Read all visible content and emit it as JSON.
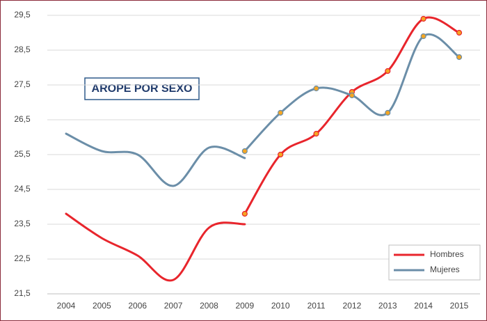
{
  "chart_data": {
    "type": "line",
    "title": "AROPE POR SEXO",
    "categories": [
      "2004",
      "2005",
      "2006",
      "2007",
      "2008",
      "2009",
      "2010",
      "2011",
      "2012",
      "2013",
      "2014",
      "2015"
    ],
    "series": [
      {
        "name": "Hombres",
        "color": "#e8252c",
        "marker_color": "#f5a623",
        "pieces": [
          {
            "markers": false,
            "values": [
              23.8,
              23.1,
              22.6,
              21.9,
              23.4,
              23.5,
              null,
              null,
              null,
              null,
              null,
              null
            ]
          },
          {
            "markers": true,
            "values": [
              null,
              null,
              null,
              null,
              null,
              23.8,
              25.5,
              26.1,
              27.3,
              27.9,
              29.4,
              29.0
            ]
          }
        ]
      },
      {
        "name": "Mujeres",
        "color": "#6b8ea8",
        "marker_color": "#f5a623",
        "pieces": [
          {
            "markers": false,
            "values": [
              26.1,
              25.6,
              25.5,
              24.6,
              25.7,
              25.4,
              null,
              null,
              null,
              null,
              null,
              null
            ]
          },
          {
            "markers": true,
            "values": [
              null,
              null,
              null,
              null,
              null,
              25.6,
              26.7,
              27.4,
              27.2,
              26.7,
              28.9,
              28.3
            ]
          }
        ]
      }
    ],
    "ylim": [
      21.5,
      29.5
    ],
    "yticks": [
      {
        "value": 21.5,
        "label": "21,5"
      },
      {
        "value": 22.5,
        "label": "22,5"
      },
      {
        "value": 23.5,
        "label": "23,5"
      },
      {
        "value": 24.5,
        "label": "24,5"
      },
      {
        "value": 25.5,
        "label": "25,5"
      },
      {
        "value": 26.5,
        "label": "26,5"
      },
      {
        "value": 27.5,
        "label": "27,5"
      },
      {
        "value": 28.5,
        "label": "28,5"
      },
      {
        "value": 29.5,
        "label": "29,5"
      }
    ],
    "grid": true,
    "smooth": true,
    "legend": "lower right"
  }
}
